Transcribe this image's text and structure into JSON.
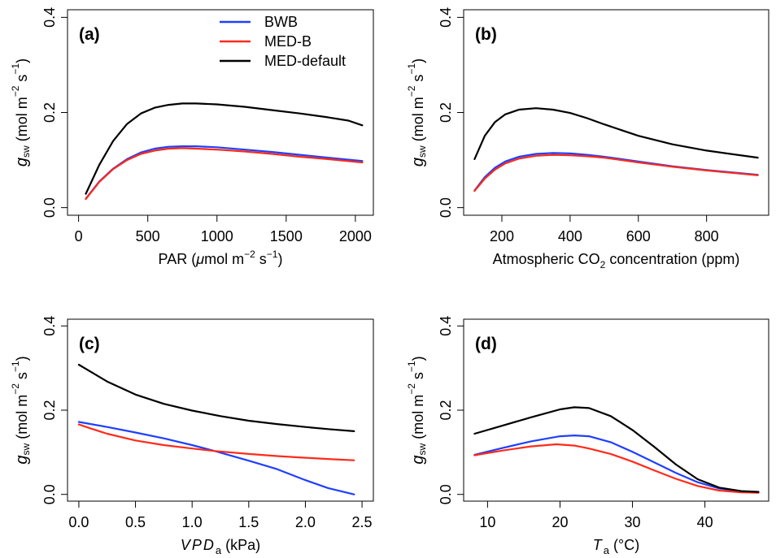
{
  "figure": {
    "legend": [
      {
        "name": "BWB",
        "color": "#1f3fff"
      },
      {
        "name": "MED-B",
        "color": "#ff2a1a"
      },
      {
        "name": "MED-default",
        "color": "#000000"
      }
    ]
  },
  "chart_data": [
    {
      "type": "line",
      "panel_label": "(a)",
      "title": "",
      "xlabel": "PAR (μmol m−2 s−1)",
      "xlabel_parts": {
        "main": "PAR (",
        "italic": "μ",
        "rest": "mol m",
        "sup1": "−2",
        "mid": " s",
        "sup2": "−1",
        "end": ")"
      },
      "ylabel": "g_sw (mol m−2 s−1)",
      "xlim": [
        -80,
        2130
      ],
      "ylim": [
        -0.016,
        0.416
      ],
      "xticks": [
        0,
        500,
        1000,
        1500,
        2000
      ],
      "xtick_labels": [
        "0",
        "500",
        "1000",
        "1500",
        "2000"
      ],
      "yticks": [
        0.0,
        0.2,
        0.4
      ],
      "ytick_labels": [
        "0.0",
        "0.2",
        "0.4"
      ],
      "grid": false,
      "legend_position": "top-right",
      "series": [
        {
          "name": "BWB",
          "color": "#1f3fff",
          "x": [
            52,
            150,
            250,
            350,
            450,
            550,
            650,
            750,
            850,
            1000,
            1200,
            1400,
            1600,
            1800,
            2050
          ],
          "y": [
            0.019,
            0.055,
            0.082,
            0.102,
            0.116,
            0.124,
            0.128,
            0.129,
            0.129,
            0.127,
            0.122,
            0.117,
            0.111,
            0.105,
            0.098
          ]
        },
        {
          "name": "MED-B",
          "color": "#ff2a1a",
          "x": [
            52,
            150,
            250,
            350,
            450,
            550,
            650,
            750,
            850,
            1000,
            1200,
            1400,
            1600,
            1800,
            2050
          ],
          "y": [
            0.018,
            0.054,
            0.081,
            0.1,
            0.113,
            0.12,
            0.124,
            0.125,
            0.124,
            0.122,
            0.118,
            0.113,
            0.107,
            0.102,
            0.095
          ]
        },
        {
          "name": "MED-default",
          "color": "#000000",
          "x": [
            52,
            150,
            250,
            350,
            450,
            550,
            650,
            750,
            850,
            1000,
            1200,
            1400,
            1600,
            1800,
            1950,
            2050
          ],
          "y": [
            0.029,
            0.09,
            0.14,
            0.176,
            0.198,
            0.21,
            0.216,
            0.219,
            0.219,
            0.217,
            0.212,
            0.205,
            0.198,
            0.19,
            0.183,
            0.173
          ]
        }
      ]
    },
    {
      "type": "line",
      "panel_label": "(b)",
      "title": "",
      "xlabel": "Atmospheric CO2 concentration (ppm)",
      "xlabel_parts": {
        "main": "Atmospheric CO",
        "sub": "2",
        "rest": " concentration (ppm)"
      },
      "ylabel": "g_sw (mol m−2 s−1)",
      "xlim": [
        88,
        982
      ],
      "ylim": [
        -0.016,
        0.416
      ],
      "xticks": [
        200,
        400,
        600,
        800
      ],
      "xtick_labels": [
        "200",
        "400",
        "600",
        "800"
      ],
      "yticks": [
        0.0,
        0.2,
        0.4
      ],
      "ytick_labels": [
        "0.0",
        "0.2",
        "0.4"
      ],
      "grid": false,
      "series": [
        {
          "name": "BWB",
          "color": "#1f3fff",
          "x": [
            120,
            150,
            180,
            210,
            250,
            300,
            350,
            400,
            450,
            500,
            600,
            700,
            800,
            950
          ],
          "y": [
            0.036,
            0.064,
            0.084,
            0.097,
            0.107,
            0.113,
            0.115,
            0.114,
            0.111,
            0.107,
            0.097,
            0.087,
            0.079,
            0.069
          ]
        },
        {
          "name": "MED-B",
          "color": "#ff2a1a",
          "x": [
            120,
            150,
            180,
            210,
            250,
            300,
            350,
            400,
            450,
            500,
            600,
            700,
            800,
            950
          ],
          "y": [
            0.035,
            0.061,
            0.08,
            0.093,
            0.103,
            0.109,
            0.111,
            0.11,
            0.108,
            0.105,
            0.095,
            0.086,
            0.078,
            0.068
          ]
        },
        {
          "name": "MED-default",
          "color": "#000000",
          "x": [
            120,
            150,
            180,
            210,
            250,
            300,
            350,
            400,
            450,
            500,
            600,
            700,
            800,
            950
          ],
          "y": [
            0.102,
            0.151,
            0.18,
            0.196,
            0.206,
            0.209,
            0.206,
            0.199,
            0.188,
            0.175,
            0.151,
            0.133,
            0.12,
            0.105
          ]
        }
      ]
    },
    {
      "type": "line",
      "panel_label": "(c)",
      "title": "",
      "xlabel": "VPD_a (kPa)",
      "xlabel_parts": {
        "italic": "VPD",
        "sub": "a",
        "rest": " (kPa)"
      },
      "ylabel": "g_sw (mol m−2 s−1)",
      "xlim": [
        -0.1,
        2.6
      ],
      "ylim": [
        -0.016,
        0.416
      ],
      "xticks": [
        0.0,
        0.5,
        1.0,
        1.5,
        2.0,
        2.5
      ],
      "xtick_labels": [
        "0.0",
        "0.5",
        "1.0",
        "1.5",
        "2.0",
        "2.5"
      ],
      "yticks": [
        0.0,
        0.2,
        0.4
      ],
      "ytick_labels": [
        "0.0",
        "0.2",
        "0.4"
      ],
      "grid": false,
      "series": [
        {
          "name": "BWB",
          "color": "#1f3fff",
          "x": [
            0.0,
            0.25,
            0.5,
            0.75,
            1.0,
            1.2,
            1.5,
            1.75,
            2.0,
            2.2,
            2.43
          ],
          "y": [
            0.172,
            0.16,
            0.147,
            0.133,
            0.117,
            0.103,
            0.08,
            0.06,
            0.034,
            0.015,
            0.0
          ]
        },
        {
          "name": "MED-B",
          "color": "#ff2a1a",
          "x": [
            0.0,
            0.1,
            0.25,
            0.5,
            0.75,
            1.0,
            1.2,
            1.5,
            1.75,
            2.0,
            2.2,
            2.43
          ],
          "y": [
            0.166,
            0.157,
            0.144,
            0.128,
            0.117,
            0.109,
            0.103,
            0.096,
            0.091,
            0.087,
            0.084,
            0.081
          ]
        },
        {
          "name": "MED-default",
          "color": "#000000",
          "x": [
            0.0,
            0.1,
            0.25,
            0.5,
            0.75,
            1.0,
            1.25,
            1.5,
            1.75,
            2.0,
            2.2,
            2.43
          ],
          "y": [
            0.308,
            0.292,
            0.268,
            0.237,
            0.215,
            0.199,
            0.186,
            0.175,
            0.167,
            0.16,
            0.155,
            0.15
          ]
        }
      ]
    },
    {
      "type": "line",
      "panel_label": "(d)",
      "title": "",
      "xlabel": "T_a (°C)",
      "xlabel_parts": {
        "italic": "T",
        "sub": "a",
        "rest": " (°C)"
      },
      "ylabel": "g_sw (mol m−2 s−1)",
      "xlim": [
        6.7,
        48.8
      ],
      "ylim": [
        -0.016,
        0.416
      ],
      "xticks": [
        10,
        20,
        30,
        40
      ],
      "xtick_labels": [
        "10",
        "20",
        "30",
        "40"
      ],
      "yticks": [
        0.0,
        0.2,
        0.4
      ],
      "ytick_labels": [
        "0.0",
        "0.2",
        "0.4"
      ],
      "grid": false,
      "series": [
        {
          "name": "BWB",
          "color": "#1f3fff",
          "x": [
            8.2,
            12,
            16,
            20,
            22,
            24,
            27,
            30,
            33,
            36,
            39,
            42,
            45,
            47.4
          ],
          "y": [
            0.094,
            0.11,
            0.126,
            0.138,
            0.14,
            0.138,
            0.124,
            0.101,
            0.076,
            0.051,
            0.029,
            0.014,
            0.007,
            0.005
          ]
        },
        {
          "name": "MED-B",
          "color": "#ff2a1a",
          "x": [
            8.2,
            12,
            16,
            19.5,
            22,
            24,
            27,
            30,
            33,
            36,
            39,
            42,
            45,
            47.4
          ],
          "y": [
            0.093,
            0.104,
            0.114,
            0.119,
            0.116,
            0.109,
            0.096,
            0.078,
            0.057,
            0.037,
            0.02,
            0.009,
            0.005,
            0.004
          ]
        },
        {
          "name": "MED-default",
          "color": "#000000",
          "x": [
            8.2,
            12,
            16,
            20,
            22,
            24,
            27,
            30,
            33,
            36,
            39,
            42,
            45,
            47.4
          ],
          "y": [
            0.144,
            0.163,
            0.183,
            0.202,
            0.207,
            0.205,
            0.186,
            0.153,
            0.113,
            0.071,
            0.036,
            0.016,
            0.008,
            0.006
          ]
        }
      ]
    }
  ]
}
